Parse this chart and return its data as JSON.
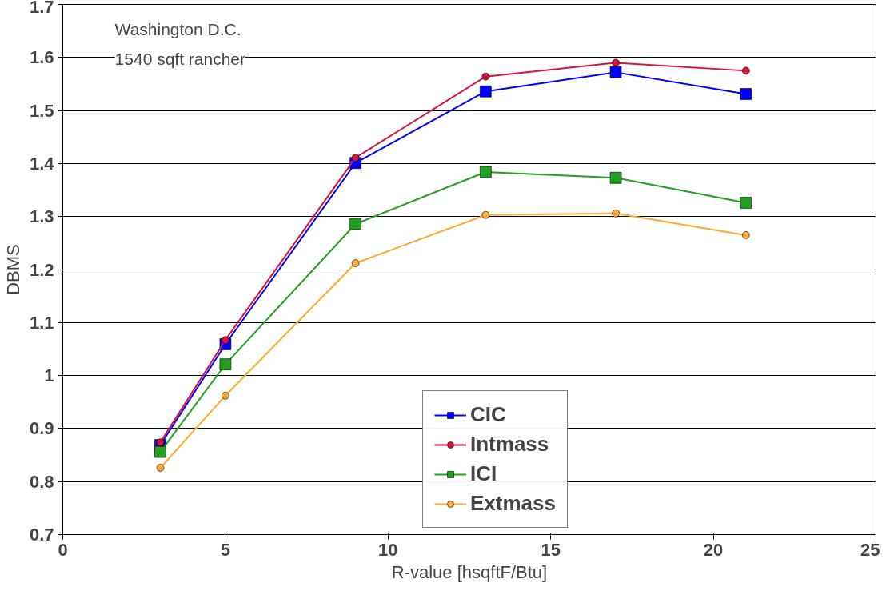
{
  "chart_data": {
    "type": "line",
    "xlabel": "R-value [hsqftF/Btu]",
    "ylabel": "DBMS",
    "x": [
      3,
      5,
      9,
      13,
      17,
      21
    ],
    "series": [
      {
        "name": "CIC",
        "color": "#0000ff",
        "marker": "square",
        "values": [
          0.869,
          1.059,
          1.401,
          1.536,
          1.572,
          1.531
        ]
      },
      {
        "name": "Intmass",
        "color": "#d4143c",
        "marker": "circle",
        "values": [
          0.874,
          1.067,
          1.411,
          1.564,
          1.59,
          1.575
        ]
      },
      {
        "name": "ICI",
        "color": "#22a022",
        "marker": "square",
        "values": [
          0.856,
          1.021,
          1.286,
          1.384,
          1.373,
          1.326
        ]
      },
      {
        "name": "Extmass",
        "color": "#ffaa33",
        "marker": "circle",
        "values": [
          0.826,
          0.962,
          1.212,
          1.303,
          1.306,
          1.265
        ]
      }
    ],
    "xlim": [
      0,
      25
    ],
    "xticks": [
      0,
      5,
      10,
      15,
      20,
      25
    ],
    "ylim": [
      0.7,
      1.7
    ],
    "yticks": [
      0.7,
      0.8,
      0.9,
      1,
      1.1,
      1.2,
      1.3,
      1.4,
      1.5,
      1.6,
      1.7
    ],
    "grid": "y",
    "legend": "bottom right",
    "annotations": [
      "Washington D.C.",
      "1540 sqft rancher"
    ]
  }
}
